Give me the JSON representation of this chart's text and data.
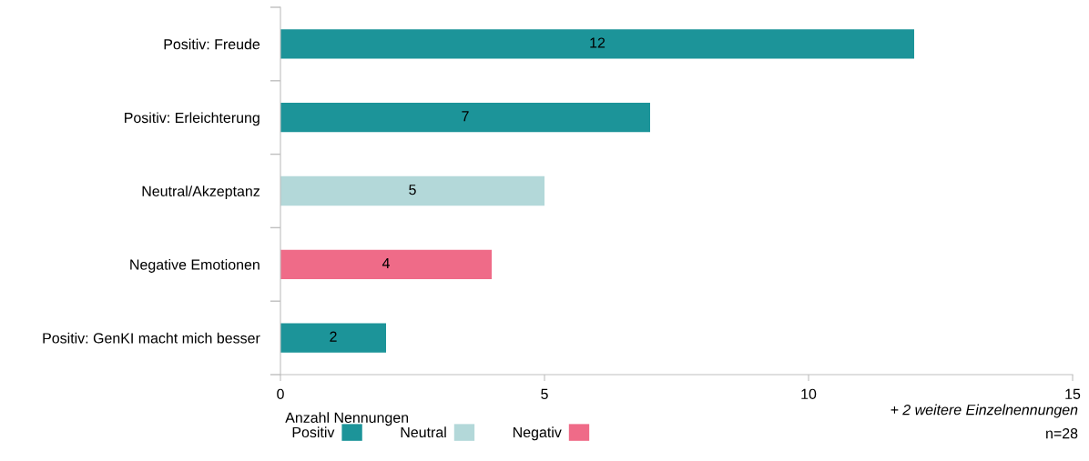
{
  "chart_data": {
    "type": "bar",
    "orientation": "horizontal",
    "stacked": true,
    "categories": [
      "Positiv: Freude",
      "Positiv: Erleichterung",
      "Neutral/Akzeptanz",
      "Negative Emotionen",
      "Positiv: GenKI macht mich besser"
    ],
    "series": [
      {
        "name": "Positiv",
        "color": "#1c9499",
        "values": [
          12,
          7,
          null,
          null,
          2
        ]
      },
      {
        "name": "Neutral",
        "color": "#b3d8d9",
        "values": [
          null,
          null,
          5,
          null,
          null
        ]
      },
      {
        "name": "Negativ",
        "color": "#ef6b88",
        "values": [
          null,
          null,
          null,
          4,
          null
        ]
      }
    ],
    "xlim": [
      0,
      15
    ],
    "xticks": [
      0,
      5,
      10,
      15
    ],
    "xlabel": "Anzahl Nennungen",
    "data_labels": true,
    "legend": "bottom left",
    "grid": false,
    "annotations": [
      "+ 2 weitere Einzelnennungen",
      "n=28"
    ]
  }
}
